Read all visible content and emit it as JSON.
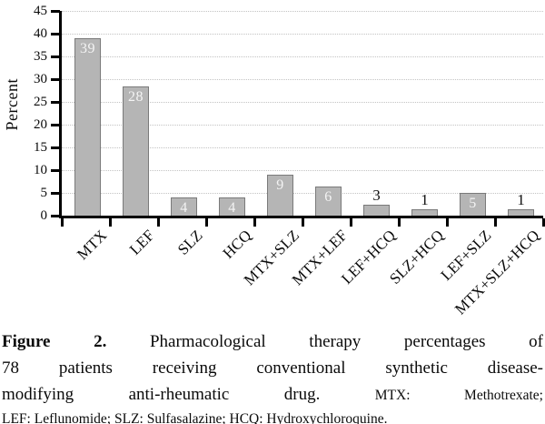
{
  "chart_data": {
    "type": "bar",
    "title": "",
    "xlabel": "",
    "ylabel": "Percent",
    "ylim": [
      0,
      45
    ],
    "yticks": [
      0,
      5,
      10,
      15,
      20,
      25,
      30,
      35,
      40,
      45
    ],
    "grid": "horizontal-dotted",
    "legend": "none",
    "categories": [
      "MTX",
      "LEF",
      "SLZ",
      "HCQ",
      "MTX+SLZ",
      "MTX+LEF",
      "LEF+HCQ",
      "SLZ+HCQ",
      "LEF+SLZ",
      "MTX+SLZ+HCQ"
    ],
    "values": [
      39,
      28,
      4,
      4,
      9,
      6,
      3,
      1,
      5,
      1
    ],
    "bars": [
      {
        "category": "MTX",
        "value": 39,
        "drawn_height": 39.0,
        "label_position": "inside"
      },
      {
        "category": "LEF",
        "value": 28,
        "drawn_height": 28.4,
        "label_position": "inside"
      },
      {
        "category": "SLZ",
        "value": 4,
        "drawn_height": 4.0,
        "label_position": "inside"
      },
      {
        "category": "HCQ",
        "value": 4,
        "drawn_height": 4.0,
        "label_position": "inside"
      },
      {
        "category": "MTX+SLZ",
        "value": 9,
        "drawn_height": 9.0,
        "label_position": "inside"
      },
      {
        "category": "MTX+LEF",
        "value": 6,
        "drawn_height": 6.5,
        "label_position": "inside"
      },
      {
        "category": "LEF+HCQ",
        "value": 3,
        "drawn_height": 2.5,
        "label_position": "above"
      },
      {
        "category": "SLZ+HCQ",
        "value": 1,
        "drawn_height": 1.4,
        "label_position": "above"
      },
      {
        "category": "LEF+SLZ",
        "value": 5,
        "drawn_height": 5.0,
        "label_position": "inside"
      },
      {
        "category": "MTX+SLZ+HCQ",
        "value": 1,
        "drawn_height": 1.4,
        "label_position": "above"
      }
    ],
    "colors": {
      "bar_fill": "#b5b5b5",
      "bar_border": "#7a7a7a",
      "gridline": "#c3c3c3",
      "axis": "#000000",
      "value_inside_text": "#f4f4f4",
      "value_above_text": "#111111"
    }
  },
  "caption": {
    "fig_label": "Figure 2.",
    "line1_rest": "Pharmacological therapy percentages of",
    "line2": "78 patients receiving conventional synthetic disease-",
    "line3_main": "modifying anti-rheumatic drug.",
    "line3_small": "MTX: Methotrexate;",
    "line4_small": "LEF: Leflunomide; SLZ: Sulfasalazine; HCQ: Hydroxychloroquine."
  }
}
